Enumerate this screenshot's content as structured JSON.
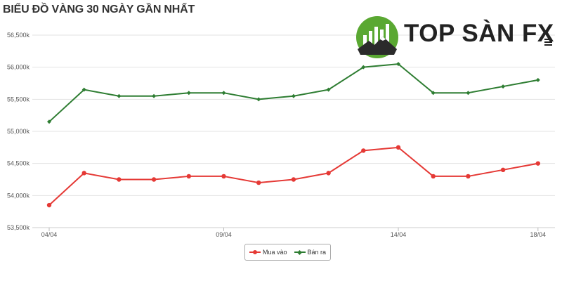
{
  "chart_data": {
    "type": "line",
    "title": "BIỂU ĐỒ VÀNG 30 NGÀY GẦN NHẤT",
    "xlabel": "",
    "ylabel": "",
    "x_ticks": [
      {
        "index": 0,
        "label": "04/04"
      },
      {
        "index": 5,
        "label": "09/04"
      },
      {
        "index": 10,
        "label": "14/04"
      },
      {
        "index": 14,
        "label": "18/04"
      }
    ],
    "y_ticks": [
      "53,500k",
      "54,000k",
      "54,500k",
      "55,000k",
      "55,500k",
      "56,000k",
      "56,500k"
    ],
    "y_tick_values": [
      53500,
      54000,
      54500,
      55000,
      55500,
      56000,
      56500
    ],
    "ylim": [
      53500,
      56500
    ],
    "grid": true,
    "legend_position": "bottom-center",
    "series": [
      {
        "name": "Mua vào",
        "color": "#e53935",
        "marker": "circle",
        "values": [
          53850,
          54350,
          54250,
          54250,
          54300,
          54300,
          54200,
          54250,
          54350,
          54700,
          54750,
          54300,
          54300,
          54400,
          54500
        ]
      },
      {
        "name": "Bán ra",
        "color": "#2e7d32",
        "marker": "diamond",
        "values": [
          55150,
          55650,
          55550,
          55550,
          55600,
          55600,
          55500,
          55550,
          55650,
          56000,
          56050,
          55600,
          55600,
          55700,
          55800
        ]
      }
    ]
  },
  "logo": {
    "text": "TOP SÀN FX",
    "mark": "mountain-bar-chart-logo",
    "color": "#5aa832"
  },
  "menu_icon": "hamburger-icon"
}
